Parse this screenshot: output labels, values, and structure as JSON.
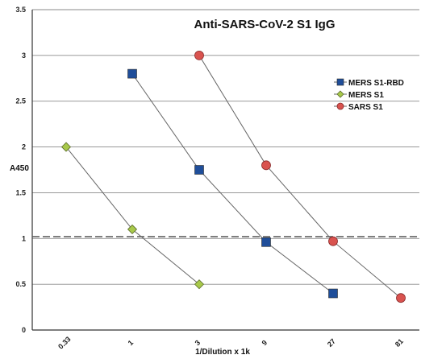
{
  "chart_data": {
    "type": "line",
    "title": "Anti-SARS-CoV-2 S1 IgG",
    "xlabel": "1/Dilution x 1k",
    "ylabel": "A450",
    "categories": [
      "0.33",
      "1",
      "3",
      "9",
      "27",
      "81"
    ],
    "yticks": [
      "0",
      "0.5",
      "1",
      "1.5",
      "2",
      "2.5",
      "3",
      "3.5"
    ],
    "ylim": [
      0,
      3.5
    ],
    "grid": true,
    "legend": "right",
    "reference_line": 1.02,
    "series": [
      {
        "name": "MERS S1-RBD",
        "marker": "square",
        "color": "#1f4e9a",
        "points": [
          [
            1,
            2.8
          ],
          [
            2,
            1.75
          ],
          [
            3,
            0.96
          ],
          [
            4,
            0.4
          ]
        ]
      },
      {
        "name": "MERS S1",
        "marker": "diamond",
        "color": "#a8c94a",
        "points": [
          [
            0,
            2.0
          ],
          [
            1,
            1.1
          ],
          [
            2,
            0.5
          ]
        ]
      },
      {
        "name": "SARS S1",
        "marker": "circle",
        "color": "#d9534f",
        "points": [
          [
            2,
            3.0
          ],
          [
            3,
            1.8
          ],
          [
            4,
            0.97
          ],
          [
            5,
            0.35
          ]
        ]
      }
    ]
  }
}
